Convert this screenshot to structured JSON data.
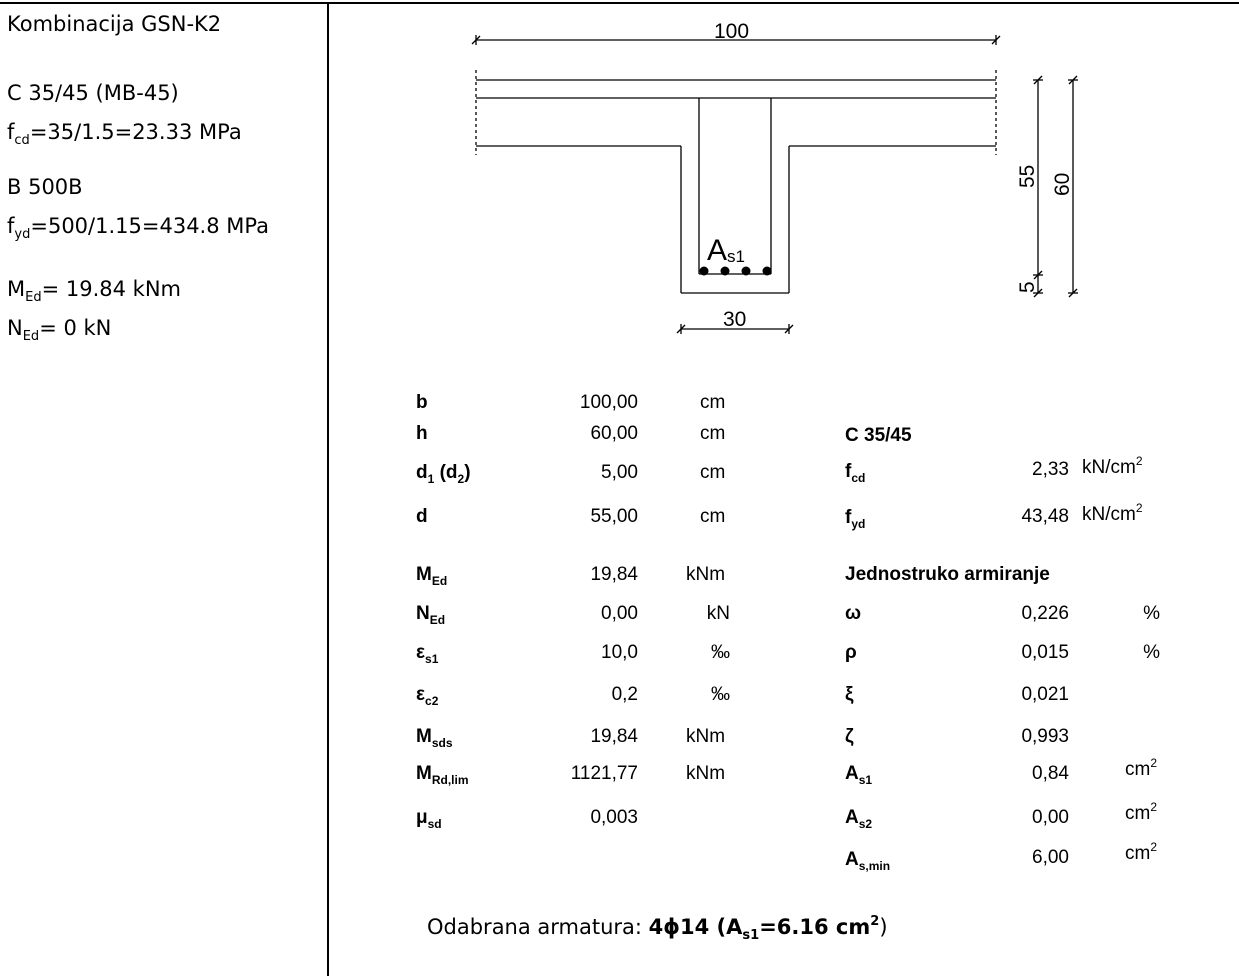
{
  "left": {
    "combination": "Kombinacija GSN-K2",
    "concrete": "C 35/45  (MB-45)",
    "fcd_sym": "f",
    "fcd_sub": "cd",
    "fcd_eq": "=35/1.5=23.33 MPa",
    "steel": "B 500B",
    "fyd_sym": "f",
    "fyd_sub": "yd",
    "fyd_eq": "=500/1.15=434.8 MPa",
    "med_sym": "M",
    "med_sub": "Ed",
    "med_eq": "= 19.84 kNm",
    "ned_sym": "N",
    "ned_sub": "Ed",
    "ned_eq": "= 0 kN"
  },
  "drawing": {
    "dim_width": "100",
    "dim_web": "30",
    "dim_d": "55",
    "dim_h": "60",
    "dim_cover": "5",
    "as_label": "A",
    "as_sub": "s1"
  },
  "table_left": [
    {
      "sym": "b",
      "sub": "",
      "value": "100,00",
      "unit": "cm"
    },
    {
      "sym": "h",
      "sub": "",
      "value": "60,00",
      "unit": "cm"
    },
    {
      "sym": "d",
      "sub": "1",
      "sym2": " (d",
      "sub2": "2",
      "tail": ")",
      "value": "5,00",
      "unit": "cm"
    },
    {
      "sym": "d",
      "sub": "",
      "value": "55,00",
      "unit": "cm"
    },
    {
      "sym": "M",
      "sub": "Ed",
      "value": "19,84",
      "unit": "kNm"
    },
    {
      "sym": "N",
      "sub": "Ed",
      "value": "0,00",
      "unit": "kN"
    },
    {
      "sym": "ε",
      "sub": "s1",
      "value": "10,0",
      "unit": "‰"
    },
    {
      "sym": "ε",
      "sub": "c2",
      "value": "0,2",
      "unit": "‰"
    },
    {
      "sym": "M",
      "sub": "sds",
      "value": "19,84",
      "unit": "kNm"
    },
    {
      "sym": "M",
      "sub": "Rd,lim",
      "value": "1121,77",
      "unit": "kNm"
    },
    {
      "sym": "μ",
      "sub": "sd",
      "value": "0,003",
      "unit": ""
    }
  ],
  "table_right": {
    "concrete_class": "C 35/45",
    "fcd": {
      "sym": "f",
      "sub": "cd",
      "value": "2,33",
      "unit": "kN/cm",
      "exp": "2"
    },
    "fyd": {
      "sym": "f",
      "sub": "yd",
      "value": "43,48",
      "unit": "kN/cm",
      "exp": "2"
    },
    "heading": "Jednostruko armiranje",
    "rows": [
      {
        "sym": "ω",
        "sub": "",
        "value": "0,226",
        "unit": "%",
        "exp": ""
      },
      {
        "sym": "ρ",
        "sub": "",
        "value": "0,015",
        "unit": "%",
        "exp": ""
      },
      {
        "sym": "ξ",
        "sub": "",
        "value": "0,021",
        "unit": "",
        "exp": ""
      },
      {
        "sym": "ζ",
        "sub": "",
        "value": "0,993",
        "unit": "",
        "exp": ""
      },
      {
        "sym": "A",
        "sub": "s1",
        "value": "0,84",
        "unit": "cm",
        "exp": "2"
      },
      {
        "sym": "A",
        "sub": "s2",
        "value": "0,00",
        "unit": "cm",
        "exp": "2"
      },
      {
        "sym": "A",
        "sub": "s,min",
        "value": "6,00",
        "unit": "cm",
        "exp": "2"
      }
    ]
  },
  "selected": {
    "prefix": "Odabrana armatura: ",
    "bars": "4ϕ14 (A",
    "sub": "s1",
    "area": "=6.16 cm",
    "exp": "2",
    "close": ")"
  }
}
